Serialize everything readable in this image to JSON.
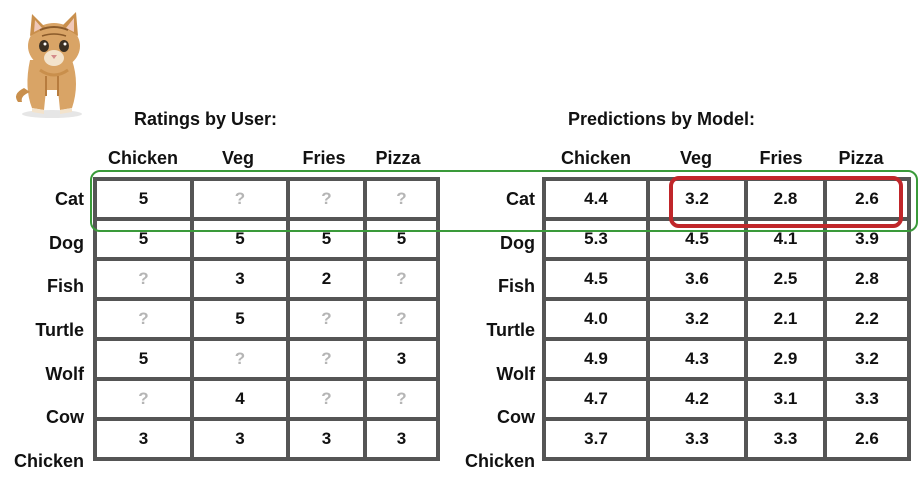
{
  "left_table": {
    "title": "Ratings by User:",
    "columns": [
      "Chicken",
      "Veg",
      "Fries",
      "Pizza"
    ],
    "rows": [
      {
        "label": "Cat",
        "cells": [
          "5",
          "?",
          "?",
          "?"
        ]
      },
      {
        "label": "Dog",
        "cells": [
          "5",
          "5",
          "5",
          "5"
        ]
      },
      {
        "label": "Fish",
        "cells": [
          "?",
          "3",
          "2",
          "?"
        ]
      },
      {
        "label": "Turtle",
        "cells": [
          "?",
          "5",
          "?",
          "?"
        ]
      },
      {
        "label": "Wolf",
        "cells": [
          "5",
          "?",
          "?",
          "3"
        ]
      },
      {
        "label": "Cow",
        "cells": [
          "?",
          "4",
          "?",
          "?"
        ]
      },
      {
        "label": "Chicken",
        "cells": [
          "3",
          "3",
          "3",
          "3"
        ]
      }
    ]
  },
  "right_table": {
    "title": "Predictions by Model:",
    "columns": [
      "Chicken",
      "Veg",
      "Fries",
      "Pizza"
    ],
    "rows": [
      {
        "label": "Cat",
        "cells": [
          "4.4",
          "3.2",
          "2.8",
          "2.6"
        ]
      },
      {
        "label": "Dog",
        "cells": [
          "5.3",
          "4.5",
          "4.1",
          "3.9"
        ]
      },
      {
        "label": "Fish",
        "cells": [
          "4.5",
          "3.6",
          "2.5",
          "2.8"
        ]
      },
      {
        "label": "Turtle",
        "cells": [
          "4.0",
          "3.2",
          "2.1",
          "2.2"
        ]
      },
      {
        "label": "Wolf",
        "cells": [
          "4.9",
          "4.3",
          "2.9",
          "3.2"
        ]
      },
      {
        "label": "Cow",
        "cells": [
          "4.7",
          "4.2",
          "3.1",
          "3.3"
        ]
      },
      {
        "label": "Chicken",
        "cells": [
          "3.7",
          "3.3",
          "3.3",
          "2.6"
        ]
      }
    ]
  },
  "highlights": {
    "row_highlight_color": "#3a9a3a",
    "cell_highlight_color": "#c0262a"
  }
}
